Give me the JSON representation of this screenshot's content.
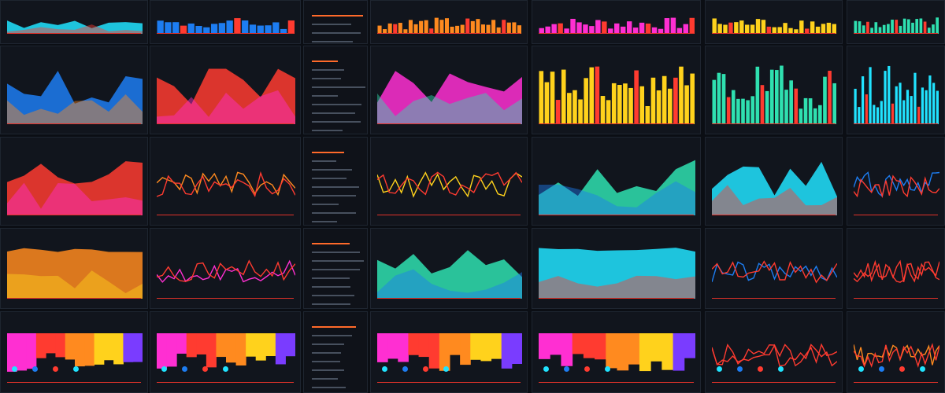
{
  "dashboard": {
    "colors": {
      "background": "#0b0e14",
      "panel": "#11151d",
      "accent_cyan": "#21e3ff",
      "accent_blue": "#1d7df2",
      "accent_red": "#ff3b30",
      "accent_orange": "#ff8a1f",
      "accent_magenta": "#ff2fd2",
      "accent_yellow": "#ffd21c"
    },
    "panels": []
  }
}
